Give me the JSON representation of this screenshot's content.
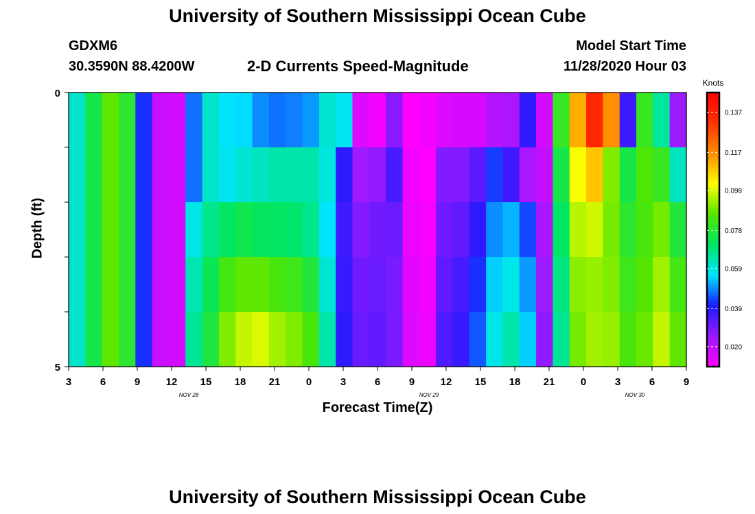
{
  "header": {
    "title": "University of Southern Mississippi Ocean Cube",
    "station_id": "GDXM6",
    "station_coords": "30.3590N 88.4200W",
    "subtitle": "2-D Currents Speed-Magnitude",
    "model_label": "Model Start Time",
    "model_time": "11/28/2020 Hour 03",
    "footer_title": "University of Southern Mississippi Ocean Cube"
  },
  "chart_data": {
    "type": "heatmap",
    "xlabel": "Forecast Time(Z)",
    "ylabel": "Depth (ft)",
    "x_ticks": [
      "3",
      "6",
      "9",
      "12",
      "15",
      "18",
      "21",
      "0",
      "3",
      "6",
      "9",
      "12",
      "15",
      "18",
      "21",
      "0",
      "3",
      "6",
      "9"
    ],
    "date_labels": [
      {
        "text": "NOV  28",
        "after_tick": 3
      },
      {
        "text": "NOV  29",
        "after_tick": 10
      },
      {
        "text": "NOV  30",
        "after_tick": 16
      }
    ],
    "y_ticks": [
      "0",
      "5"
    ],
    "ylim": [
      0,
      5
    ],
    "colorbar": {
      "unit": "Knots",
      "range": [
        0.01,
        0.147
      ],
      "tick_labels": [
        "0.137",
        "0.117",
        "0.098",
        "0.078",
        "0.059",
        "0.039",
        "0.020"
      ]
    },
    "rows": [
      [
        0.061,
        0.075,
        0.087,
        0.079,
        0.042,
        0.018,
        0.017,
        0.047,
        0.061,
        0.056,
        0.055,
        0.049,
        0.047,
        0.048,
        0.05,
        0.06,
        0.057,
        0.015,
        0.012,
        0.027,
        0.01,
        0.012,
        0.015,
        0.016,
        0.016,
        0.021,
        0.023,
        0.038,
        0.017,
        0.081,
        0.112,
        0.135,
        0.116,
        0.036,
        0.081,
        0.065,
        0.025
      ],
      [
        0.061,
        0.075,
        0.087,
        0.079,
        0.042,
        0.018,
        0.017,
        0.047,
        0.061,
        0.057,
        0.06,
        0.062,
        0.064,
        0.064,
        0.064,
        0.059,
        0.038,
        0.024,
        0.026,
        0.035,
        0.012,
        0.01,
        0.028,
        0.028,
        0.033,
        0.043,
        0.036,
        0.023,
        0.019,
        0.075,
        0.101,
        0.109,
        0.09,
        0.075,
        0.085,
        0.081,
        0.062
      ],
      [
        0.061,
        0.075,
        0.087,
        0.079,
        0.042,
        0.018,
        0.017,
        0.058,
        0.067,
        0.071,
        0.074,
        0.072,
        0.071,
        0.07,
        0.067,
        0.056,
        0.036,
        0.028,
        0.03,
        0.031,
        0.013,
        0.011,
        0.03,
        0.032,
        0.038,
        0.049,
        0.052,
        0.044,
        0.023,
        0.071,
        0.095,
        0.097,
        0.089,
        0.079,
        0.084,
        0.089,
        0.077
      ],
      [
        0.061,
        0.075,
        0.087,
        0.079,
        0.042,
        0.018,
        0.017,
        0.063,
        0.073,
        0.083,
        0.087,
        0.087,
        0.084,
        0.082,
        0.077,
        0.06,
        0.037,
        0.03,
        0.031,
        0.029,
        0.014,
        0.012,
        0.032,
        0.035,
        0.042,
        0.054,
        0.058,
        0.05,
        0.025,
        0.068,
        0.091,
        0.092,
        0.09,
        0.082,
        0.086,
        0.093,
        0.083
      ],
      [
        0.061,
        0.075,
        0.087,
        0.079,
        0.042,
        0.018,
        0.017,
        0.066,
        0.076,
        0.09,
        0.096,
        0.098,
        0.093,
        0.09,
        0.084,
        0.064,
        0.038,
        0.031,
        0.032,
        0.029,
        0.015,
        0.013,
        0.034,
        0.037,
        0.045,
        0.058,
        0.064,
        0.054,
        0.026,
        0.066,
        0.089,
        0.093,
        0.092,
        0.084,
        0.088,
        0.096,
        0.087
      ]
    ]
  },
  "colors": {
    "ramp": [
      "#ff00ff",
      "#9a1aff",
      "#1a1aff",
      "#00e5ff",
      "#00e664",
      "#55e600",
      "#ffff00",
      "#ff8c00",
      "#ff3300",
      "#ff0000"
    ]
  }
}
